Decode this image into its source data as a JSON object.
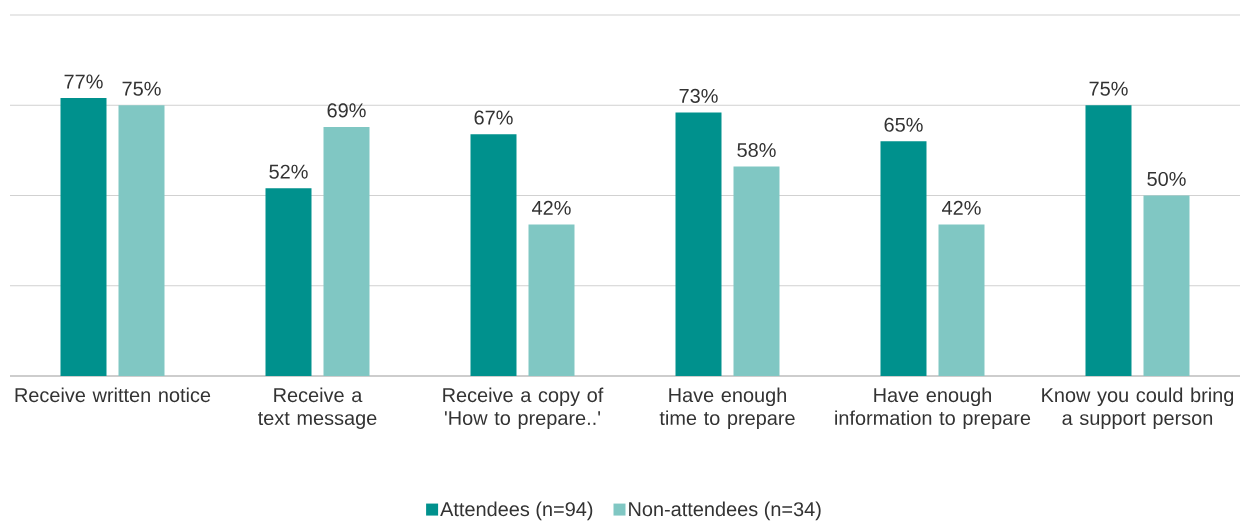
{
  "chart_data": {
    "type": "bar",
    "categories": [
      "Receive written notice",
      "Receive a text message",
      "Receive a copy of 'How to prepare..'",
      "Have enough time to prepare",
      "Have enough information to prepare",
      "Know you could bring a support person"
    ],
    "series": [
      {
        "name": "Attendees (n=94)",
        "color": "#00918d",
        "values": [
          77,
          52,
          67,
          73,
          65,
          75
        ],
        "value_labels": [
          "77%",
          "52%",
          "67%",
          "73%",
          "65%",
          "75%"
        ]
      },
      {
        "name": "Non-attendees (n=34)",
        "color": "#80c7c3",
        "values": [
          75,
          69,
          42,
          58,
          42,
          50
        ],
        "value_labels": [
          "75%",
          "69%",
          "42%",
          "58%",
          "42%",
          "50%"
        ]
      }
    ],
    "ylim": [
      0,
      100
    ],
    "yticks": [
      {
        "value": 0,
        "label": null
      },
      {
        "value": 25,
        "label": null
      },
      {
        "value": 50,
        "label": null
      },
      {
        "value": 75,
        "label": null
      },
      {
        "value": 100,
        "label": null
      }
    ],
    "grid": "y",
    "legend": "bottom"
  }
}
